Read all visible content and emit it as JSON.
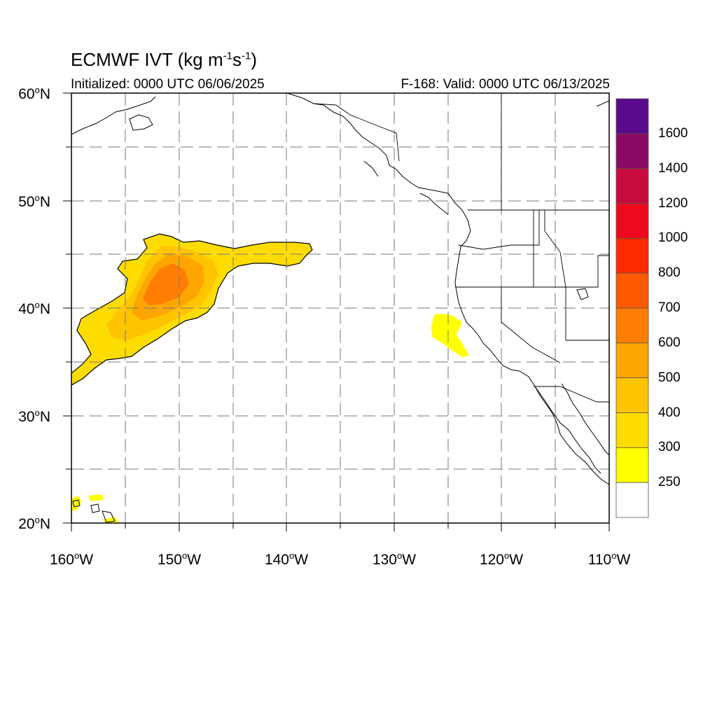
{
  "header": {
    "title_prefix": "ECMWF IVT (kg m",
    "title_exp1": "-1",
    "title_mid": "s",
    "title_exp2": "-1",
    "title_suffix": ")",
    "initialized": "Initialized: 0000 UTC 06/06/2025",
    "valid": "F-168: Valid: 0000 UTC 06/13/2025"
  },
  "axes": {
    "lat_labels": [
      "60",
      "50",
      "40",
      "30",
      "20"
    ],
    "lat_suffix": "N",
    "lon_labels": [
      "160",
      "150",
      "140",
      "130",
      "120",
      "110"
    ],
    "lon_suffix": "W",
    "degree_symbol": "o"
  },
  "colorbar": {
    "labels": [
      "1600",
      "1400",
      "1200",
      "1000",
      "800",
      "700",
      "600",
      "500",
      "400",
      "300",
      "250"
    ],
    "colors": [
      "#5a0a8c",
      "#8c0a64",
      "#c80a3c",
      "#ee0a1e",
      "#ff2a00",
      "#ff5a00",
      "#ff7d00",
      "#ffa500",
      "#ffc400",
      "#ffdc00",
      "#ffff00",
      "#ffffff"
    ]
  }
}
